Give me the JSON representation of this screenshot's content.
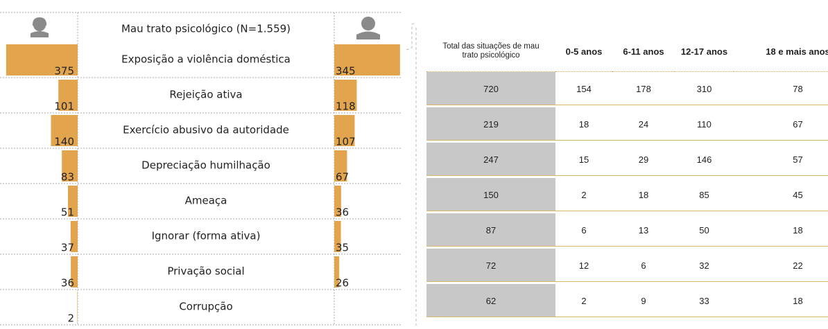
{
  "chart_data": {
    "type": "butterfly",
    "title": "Mau trato psicológico (N=1.559)",
    "categories": [
      "Exposição a violência doméstica",
      "Rejeição ativa",
      "Exercício abusivo da autoridade",
      "Depreciação humilhação",
      "Ameaça",
      "Ignorar (forma ativa)",
      "Privação social",
      "Corrupção"
    ],
    "series": [
      {
        "color": "#e2a54e",
        "values": [
          375,
          101,
          140,
          83,
          51,
          37,
          36,
          2
        ]
      },
      {
        "color": "#e2a54e",
        "values": [
          345,
          118,
          107,
          67,
          36,
          35,
          26,
          null
        ]
      }
    ]
  },
  "table": {
    "header": [
      "Total das situações de mau trato psicológico",
      "0-5 anos",
      "6-11 anos",
      "12-17 anos",
      "18 e mais anos"
    ],
    "rows": [
      [
        720,
        154,
        178,
        310,
        78
      ],
      [
        219,
        18,
        24,
        110,
        67
      ],
      [
        247,
        15,
        29,
        146,
        57
      ],
      [
        150,
        2,
        18,
        85,
        45
      ],
      [
        87,
        6,
        13,
        50,
        18
      ],
      [
        72,
        12,
        6,
        32,
        22
      ],
      [
        62,
        2,
        9,
        33,
        18
      ]
    ]
  }
}
